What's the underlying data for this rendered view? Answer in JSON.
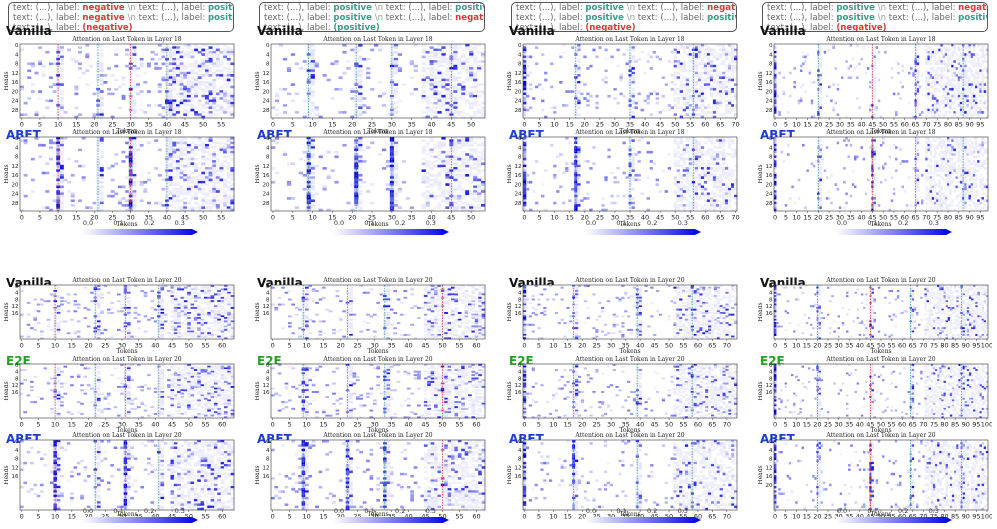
{
  "prompts": [
    {
      "lines": [
        [
          {
            "t": "text: (...), label: ",
            "c": "plain"
          },
          {
            "t": "negative",
            "c": "neg"
          },
          {
            "t": " \\n ",
            "c": "nl"
          },
          {
            "t": "text: (...), label: ",
            "c": "plain"
          },
          {
            "t": "positive",
            "c": "pos"
          },
          {
            "t": " \\n",
            "c": "nl"
          }
        ],
        [
          {
            "t": "text: (...), label: ",
            "c": "plain"
          },
          {
            "t": "negative",
            "c": "neg"
          },
          {
            "t": " \\n ",
            "c": "nl"
          },
          {
            "t": "text: (...), label: ",
            "c": "plain"
          },
          {
            "t": "positive",
            "c": "pos"
          },
          {
            "t": " \\n",
            "c": "nl"
          }
        ],
        [
          {
            "t": "text: (...), label: ",
            "c": "plain"
          },
          {
            "t": "(negative)",
            "c": "neg"
          }
        ]
      ]
    },
    {
      "lines": [
        [
          {
            "t": "text: (...), label: ",
            "c": "plain"
          },
          {
            "t": "positive",
            "c": "pos"
          },
          {
            "t": " \\n ",
            "c": "nl"
          },
          {
            "t": "text: (...), label: ",
            "c": "plain"
          },
          {
            "t": "positive",
            "c": "pos"
          },
          {
            "t": " \\n",
            "c": "nl"
          }
        ],
        [
          {
            "t": "text: (...), label: ",
            "c": "plain"
          },
          {
            "t": "positive",
            "c": "pos"
          },
          {
            "t": " \\n ",
            "c": "nl"
          },
          {
            "t": "text: (...), label: ",
            "c": "plain"
          },
          {
            "t": "negative",
            "c": "neg"
          },
          {
            "t": " \\n",
            "c": "nl"
          }
        ],
        [
          {
            "t": "text: (...), label: ",
            "c": "plain"
          },
          {
            "t": "(positive)",
            "c": "pos"
          }
        ]
      ]
    },
    {
      "lines": [
        [
          {
            "t": "text: (...), label: ",
            "c": "plain"
          },
          {
            "t": "positive",
            "c": "pos"
          },
          {
            "t": " \\n ",
            "c": "nl"
          },
          {
            "t": "text: (...), label: ",
            "c": "plain"
          },
          {
            "t": "negative",
            "c": "neg"
          },
          {
            "t": " \\n",
            "c": "nl"
          }
        ],
        [
          {
            "t": "text: (...), label: ",
            "c": "plain"
          },
          {
            "t": "positive",
            "c": "pos"
          },
          {
            "t": " \\n ",
            "c": "nl"
          },
          {
            "t": "text: (...), label: ",
            "c": "plain"
          },
          {
            "t": "positive",
            "c": "pos"
          },
          {
            "t": " \\n",
            "c": "nl"
          }
        ],
        [
          {
            "t": "text: (...), label: ",
            "c": "plain"
          },
          {
            "t": "(negative)",
            "c": "neg"
          }
        ]
      ]
    },
    {
      "lines": [
        [
          {
            "t": "text: (...), label: ",
            "c": "plain"
          },
          {
            "t": "positive",
            "c": "pos"
          },
          {
            "t": " \\n ",
            "c": "nl"
          },
          {
            "t": "text: (...), label: ",
            "c": "plain"
          },
          {
            "t": "negative",
            "c": "neg"
          },
          {
            "t": " \\n",
            "c": "nl"
          }
        ],
        [
          {
            "t": "text: (...), label: ",
            "c": "plain"
          },
          {
            "t": "positive",
            "c": "pos"
          },
          {
            "t": " \\n ",
            "c": "nl"
          },
          {
            "t": "text: (...), label: ",
            "c": "plain"
          },
          {
            "t": "positive",
            "c": "pos"
          },
          {
            "t": " \\n",
            "c": "nl"
          }
        ],
        [
          {
            "t": "text: (...), label: ",
            "c": "plain"
          },
          {
            "t": "(negative)",
            "c": "neg"
          }
        ]
      ]
    }
  ],
  "colors": {
    "positive": "#3a9a8a",
    "negative": "#d63a3a",
    "vanilla": "#111111",
    "abft": "#1f3bd6",
    "e2e": "#21a321",
    "heat_max": "#0000e0",
    "heat_min": "#ffffff"
  },
  "colorbar": {
    "ticks": [
      "0.0",
      "0.1",
      "0.2",
      "0.3"
    ],
    "vmax": 0.34
  },
  "chart_data": [
    {
      "type": "heatmap",
      "method": "Vanilla",
      "title": "Attention on Last Token in Layer 18",
      "xlabel": "Tokens",
      "ylabel": "Heads",
      "n_tokens": 59,
      "n_heads": 32,
      "x_ticks": [
        0,
        5,
        10,
        15,
        20,
        25,
        30,
        35,
        40,
        45,
        50,
        55
      ],
      "y_ticks": [
        0,
        4,
        8,
        12,
        16,
        20,
        24,
        28
      ],
      "neg_lines": [
        10,
        30
      ],
      "pos_lines": [
        21,
        40
      ],
      "stripes": [],
      "noise": 0.12,
      "seed": 11
    },
    {
      "type": "heatmap",
      "method": "ABFT",
      "title": "Attention on Last Token in Layer 18",
      "xlabel": "Tokens",
      "ylabel": "Heads",
      "n_tokens": 59,
      "n_heads": 32,
      "x_ticks": [
        0,
        5,
        10,
        15,
        20,
        25,
        30,
        35,
        40,
        45,
        50,
        55
      ],
      "y_ticks": [
        0,
        4,
        8,
        12,
        16,
        20,
        24,
        28
      ],
      "neg_lines": [
        10,
        30
      ],
      "pos_lines": [
        21,
        40
      ],
      "stripes": [
        10,
        30
      ],
      "noise": 0.1,
      "seed": 12
    },
    {
      "type": "heatmap",
      "method": "Vanilla",
      "title": "Attention on Last Token in Layer 18",
      "xlabel": "Tokens",
      "ylabel": "Heads",
      "n_tokens": 54,
      "n_heads": 32,
      "x_ticks": [
        0,
        5,
        10,
        15,
        20,
        25,
        30,
        35,
        40,
        45,
        50
      ],
      "y_ticks": [
        0,
        4,
        8,
        12,
        16,
        20,
        24,
        28
      ],
      "neg_lines": [
        45
      ],
      "pos_lines": [
        9,
        21,
        30
      ],
      "stripes": [],
      "noise": 0.1,
      "seed": 21
    },
    {
      "type": "heatmap",
      "method": "ABFT",
      "title": "Attention on Last Token in Layer 18",
      "xlabel": "Tokens",
      "ylabel": "Heads",
      "n_tokens": 54,
      "n_heads": 32,
      "x_ticks": [
        0,
        5,
        10,
        15,
        20,
        25,
        30,
        35,
        40,
        45,
        50
      ],
      "y_ticks": [
        0,
        4,
        8,
        12,
        16,
        20,
        24,
        28
      ],
      "neg_lines": [
        45
      ],
      "pos_lines": [
        9,
        21,
        30
      ],
      "stripes": [
        9,
        21,
        30
      ],
      "noise": 0.08,
      "seed": 22
    },
    {
      "type": "heatmap",
      "method": "Vanilla",
      "title": "Attention on Last Token in Layer 18",
      "xlabel": "Tokens",
      "ylabel": "Heads",
      "n_tokens": 71,
      "n_heads": 32,
      "x_ticks": [
        0,
        5,
        10,
        15,
        20,
        25,
        30,
        35,
        40,
        45,
        50,
        55,
        60,
        65,
        70
      ],
      "y_ticks": [
        0,
        4,
        8,
        12,
        16,
        20,
        24,
        28
      ],
      "neg_lines": [],
      "pos_lines": [
        17,
        35,
        56
      ],
      "stripes": [
        0
      ],
      "noise": 0.08,
      "seed": 31
    },
    {
      "type": "heatmap",
      "method": "ABFT",
      "title": "Attention on Last Token in Layer 18",
      "xlabel": "Tokens",
      "ylabel": "Heads",
      "n_tokens": 71,
      "n_heads": 32,
      "x_ticks": [
        0,
        5,
        10,
        15,
        20,
        25,
        30,
        35,
        40,
        45,
        50,
        55,
        60,
        65,
        70
      ],
      "y_ticks": [
        0,
        4,
        8,
        12,
        16,
        20,
        24,
        28
      ],
      "neg_lines": [],
      "pos_lines": [
        17,
        35,
        56
      ],
      "stripes": [
        0,
        17
      ],
      "noise": 0.06,
      "seed": 32
    },
    {
      "type": "heatmap",
      "method": "Vanilla",
      "title": "Attention on Last Token in Layer 18",
      "xlabel": "Tokens",
      "ylabel": "Heads",
      "n_tokens": 99,
      "n_heads": 32,
      "x_ticks": [
        0,
        5,
        10,
        15,
        20,
        25,
        30,
        35,
        40,
        45,
        50,
        55,
        60,
        65,
        70,
        75,
        80,
        85,
        90,
        95
      ],
      "y_ticks": [
        0,
        4,
        8,
        12,
        16,
        20,
        24,
        28
      ],
      "neg_lines": [
        45
      ],
      "pos_lines": [
        20,
        65,
        87
      ],
      "stripes": [
        0
      ],
      "noise": 0.07,
      "seed": 41
    },
    {
      "type": "heatmap",
      "method": "ABFT",
      "title": "Attention on Last Token in Layer 18",
      "xlabel": "Tokens",
      "ylabel": "Heads",
      "n_tokens": 99,
      "n_heads": 32,
      "x_ticks": [
        0,
        5,
        10,
        15,
        20,
        25,
        30,
        35,
        40,
        45,
        50,
        55,
        60,
        65,
        70,
        75,
        80,
        85,
        90,
        95
      ],
      "y_ticks": [
        0,
        4,
        8,
        12,
        16,
        20,
        24,
        28
      ],
      "neg_lines": [
        45
      ],
      "pos_lines": [
        20,
        65,
        87
      ],
      "stripes": [
        0,
        45
      ],
      "noise": 0.05,
      "seed": 42
    },
    {
      "type": "heatmap",
      "method": "Vanilla",
      "title": "Attention on Last Token in Layer 20",
      "xlabel": "Tokens",
      "ylabel": "Heads",
      "n_tokens": 64,
      "n_heads": 32,
      "x_ticks": [
        0,
        5,
        10,
        15,
        20,
        25,
        30,
        35,
        40,
        45,
        50,
        55,
        60
      ],
      "y_ticks": [
        0,
        4,
        8,
        12,
        16
      ],
      "neg_lines": [
        10,
        31
      ],
      "pos_lines": [
        22,
        41
      ],
      "stripes": [],
      "noise": 0.1,
      "seed": 51
    },
    {
      "type": "heatmap",
      "method": "E2E",
      "title": "Attention on Last Token in Layer 20",
      "xlabel": "Tokens",
      "ylabel": "Heads",
      "n_tokens": 64,
      "n_heads": 32,
      "x_ticks": [
        0,
        5,
        10,
        15,
        20,
        25,
        30,
        35,
        40,
        45,
        50,
        55,
        60
      ],
      "y_ticks": [
        0,
        4,
        8,
        12,
        16
      ],
      "neg_lines": [
        10,
        31
      ],
      "pos_lines": [
        22,
        41
      ],
      "stripes": [],
      "noise": 0.1,
      "seed": 52
    },
    {
      "type": "heatmap",
      "method": "ABFT",
      "title": "Attention on Last Token in Layer 20",
      "xlabel": "Tokens",
      "ylabel": "Heads",
      "n_tokens": 64,
      "n_heads": 32,
      "x_ticks": [
        0,
        5,
        10,
        15,
        20,
        25,
        30,
        35,
        40,
        45,
        50,
        55,
        60
      ],
      "y_ticks": [
        0,
        4,
        8,
        12,
        16
      ],
      "neg_lines": [
        10,
        31
      ],
      "pos_lines": [
        22,
        41
      ],
      "stripes": [
        10,
        31
      ],
      "noise": 0.08,
      "seed": 53
    },
    {
      "type": "heatmap",
      "method": "Vanilla",
      "title": "Attention on Last Token in Layer 20",
      "xlabel": "Tokens",
      "ylabel": "Heads",
      "n_tokens": 63,
      "n_heads": 32,
      "x_ticks": [
        0,
        5,
        10,
        15,
        20,
        25,
        30,
        35,
        40,
        45,
        50,
        55,
        60
      ],
      "y_ticks": [
        0,
        4,
        8,
        12,
        16
      ],
      "neg_lines": [
        50
      ],
      "pos_lines": [
        9,
        22,
        33
      ],
      "stripes": [],
      "noise": 0.1,
      "seed": 61
    },
    {
      "type": "heatmap",
      "method": "E2E",
      "title": "Attention on Last Token in Layer 20",
      "xlabel": "Tokens",
      "ylabel": "Heads",
      "n_tokens": 63,
      "n_heads": 32,
      "x_ticks": [
        0,
        5,
        10,
        15,
        20,
        25,
        30,
        35,
        40,
        45,
        50,
        55,
        60
      ],
      "y_ticks": [
        0,
        4,
        8,
        12,
        16
      ],
      "neg_lines": [
        50
      ],
      "pos_lines": [
        9,
        22,
        33
      ],
      "stripes": [],
      "noise": 0.1,
      "seed": 62
    },
    {
      "type": "heatmap",
      "method": "ABFT",
      "title": "Attention on Last Token in Layer 20",
      "xlabel": "Tokens",
      "ylabel": "Heads",
      "n_tokens": 63,
      "n_heads": 32,
      "x_ticks": [
        0,
        5,
        10,
        15,
        20,
        25,
        30,
        35,
        40,
        45,
        50,
        55,
        60
      ],
      "y_ticks": [
        0,
        4,
        8,
        12,
        16
      ],
      "neg_lines": [
        50
      ],
      "pos_lines": [
        9,
        22,
        33
      ],
      "stripes": [
        9,
        22,
        33
      ],
      "noise": 0.08,
      "seed": 63
    },
    {
      "type": "heatmap",
      "method": "Vanilla",
      "title": "Attention on Last Token in Layer 20",
      "xlabel": "Tokens",
      "ylabel": "Heads",
      "n_tokens": 74,
      "n_heads": 32,
      "x_ticks": [
        0,
        5,
        10,
        15,
        20,
        25,
        30,
        35,
        40,
        45,
        50,
        55,
        60,
        65,
        70
      ],
      "y_ticks": [
        0,
        4,
        8,
        12,
        16
      ],
      "neg_lines": [],
      "pos_lines": [
        17,
        39,
        58
      ],
      "stripes": [
        0
      ],
      "noise": 0.08,
      "seed": 71
    },
    {
      "type": "heatmap",
      "method": "E2E",
      "title": "Attention on Last Token in Layer 20",
      "xlabel": "Tokens",
      "ylabel": "Heads",
      "n_tokens": 74,
      "n_heads": 32,
      "x_ticks": [
        0,
        5,
        10,
        15,
        20,
        25,
        30,
        35,
        40,
        45,
        50,
        55,
        60,
        65,
        70
      ],
      "y_ticks": [
        0,
        4,
        8,
        12,
        16
      ],
      "neg_lines": [],
      "pos_lines": [
        17,
        39,
        58
      ],
      "stripes": [
        0
      ],
      "noise": 0.08,
      "seed": 72
    },
    {
      "type": "heatmap",
      "method": "ABFT",
      "title": "Attention on Last Token in Layer 20",
      "xlabel": "Tokens",
      "ylabel": "Heads",
      "n_tokens": 74,
      "n_heads": 32,
      "x_ticks": [
        0,
        5,
        10,
        15,
        20,
        25,
        30,
        35,
        40,
        45,
        50,
        55,
        60,
        65,
        70
      ],
      "y_ticks": [
        0,
        4,
        8,
        12,
        16
      ],
      "neg_lines": [],
      "pos_lines": [
        17,
        39,
        58
      ],
      "stripes": [
        0,
        17
      ],
      "noise": 0.07,
      "seed": 73
    },
    {
      "type": "heatmap",
      "method": "Vanilla",
      "title": "Attention on Last Token in Layer 20",
      "xlabel": "Tokens",
      "ylabel": "Heads",
      "n_tokens": 101,
      "n_heads": 32,
      "x_ticks": [
        0,
        5,
        10,
        15,
        20,
        25,
        30,
        35,
        40,
        45,
        50,
        55,
        60,
        65,
        70,
        75,
        80,
        85,
        90,
        95,
        100
      ],
      "y_ticks": [
        0,
        4,
        8,
        12,
        16
      ],
      "neg_lines": [
        45
      ],
      "pos_lines": [
        20,
        64,
        88
      ],
      "stripes": [
        0
      ],
      "noise": 0.06,
      "seed": 81
    },
    {
      "type": "heatmap",
      "method": "E2E",
      "title": "Attention on Last Token in Layer 20",
      "xlabel": "Tokens",
      "ylabel": "Heads",
      "n_tokens": 101,
      "n_heads": 32,
      "x_ticks": [
        0,
        5,
        10,
        15,
        20,
        25,
        30,
        35,
        40,
        45,
        50,
        55,
        60,
        65,
        70,
        75,
        80,
        85,
        90,
        95,
        100
      ],
      "y_ticks": [
        0,
        4,
        8,
        12,
        16
      ],
      "neg_lines": [
        45
      ],
      "pos_lines": [
        20,
        64,
        88
      ],
      "stripes": [
        0
      ],
      "noise": 0.06,
      "seed": 82
    },
    {
      "type": "heatmap",
      "method": "ABFT",
      "title": "Attention on Last Token in Layer 20",
      "xlabel": "Tokens",
      "ylabel": "Heads",
      "n_tokens": 101,
      "n_heads": 32,
      "x_ticks": [
        0,
        5,
        10,
        15,
        20,
        25,
        30,
        35,
        40,
        45,
        50,
        55,
        60,
        65,
        70,
        75,
        80,
        85,
        90,
        95,
        100
      ],
      "y_ticks": [
        0,
        4,
        8,
        12,
        16,
        20
      ],
      "neg_lines": [
        45
      ],
      "pos_lines": [
        20,
        64,
        88
      ],
      "stripes": [
        0,
        45
      ],
      "noise": 0.05,
      "seed": 83
    }
  ]
}
